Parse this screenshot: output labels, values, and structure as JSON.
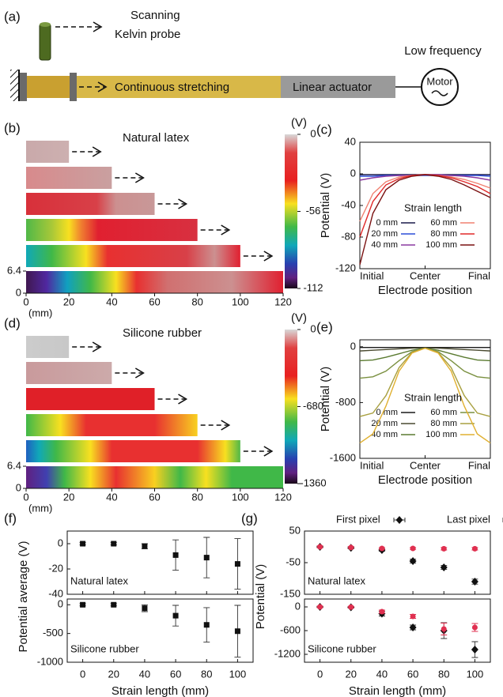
{
  "diagram": {
    "panel_label": "(a)",
    "probe_label": [
      "Scanning",
      "Kelvin probe"
    ],
    "stretch_label": "Continuous stretching",
    "actuator_label": "Linear actuator",
    "frequency_label": "Low frequency",
    "motor_label": "Motor"
  },
  "strip_panels": [
    {
      "panel_label": "(b)",
      "title": "Natural latex",
      "lengths": [
        20,
        40,
        60,
        80,
        100,
        120
      ],
      "xlim": [
        0,
        120
      ],
      "xticks": [
        0,
        20,
        40,
        60,
        80,
        100,
        120
      ],
      "xunit": "(mm)",
      "width_ticks": [
        6.4,
        0
      ],
      "colorbar": {
        "unit": "(V)",
        "lim": [
          -112,
          0
        ],
        "ticks": [
          0,
          -56,
          -112
        ]
      }
    },
    {
      "panel_label": "(d)",
      "title": "Silicone rubber",
      "lengths": [
        20,
        40,
        60,
        80,
        100,
        120
      ],
      "xlim": [
        0,
        120
      ],
      "xticks": [
        0,
        20,
        40,
        60,
        80,
        100,
        120
      ],
      "xunit": "(mm)",
      "width_ticks": [
        6.4,
        0
      ],
      "colorbar": {
        "unit": "(V)",
        "lim": [
          -1360,
          0
        ],
        "ticks": [
          0,
          -680,
          -1360
        ]
      }
    }
  ],
  "chart_data": [
    {
      "type": "line",
      "panel_label": "(c)",
      "ylabel": "Potential (V)",
      "xlabel": "Electrode position",
      "legend_title": "Strain length",
      "categories": [
        "Initial",
        null,
        null,
        null,
        null,
        "Center",
        null,
        null,
        null,
        null,
        "Final"
      ],
      "ylim": [
        -120,
        40
      ],
      "yticks": [
        40,
        0,
        -40,
        -80,
        -120
      ],
      "series": [
        {
          "name": "0 mm",
          "color": "#1a1a4a",
          "values": [
            -1,
            -1,
            -1,
            -1,
            -1,
            -1,
            -1,
            -1,
            -1,
            -1,
            -1
          ]
        },
        {
          "name": "20 mm",
          "color": "#2c4fd8",
          "values": [
            -3,
            -3,
            -2,
            -2,
            -2,
            -2,
            -2,
            -2,
            -2,
            -2,
            -3
          ]
        },
        {
          "name": "40 mm",
          "color": "#8a3aa0",
          "values": [
            -8,
            -5,
            -3,
            -2,
            -2,
            -1,
            -1,
            -2,
            -3,
            -5,
            -8
          ]
        },
        {
          "name": "60 mm",
          "color": "#f08070",
          "values": [
            -60,
            -25,
            -10,
            -4,
            -2,
            -1,
            -2,
            -4,
            -7,
            -12,
            -18
          ]
        },
        {
          "name": "80 mm",
          "color": "#e02828",
          "values": [
            -80,
            -35,
            -14,
            -6,
            -2,
            -1,
            -2,
            -5,
            -10,
            -16,
            -25
          ]
        },
        {
          "name": "100 mm",
          "color": "#7a1010",
          "values": [
            -115,
            -50,
            -20,
            -8,
            -3,
            -1,
            -3,
            -7,
            -14,
            -22,
            -30
          ]
        }
      ]
    },
    {
      "type": "line",
      "panel_label": "(e)",
      "ylabel": "Potential (V)",
      "xlabel": "Electrode position",
      "legend_title": "Strain length",
      "categories": [
        "Initial",
        null,
        null,
        null,
        null,
        "Center",
        null,
        null,
        null,
        null,
        "Final"
      ],
      "ylim": [
        -1600,
        100
      ],
      "yticks": [
        0,
        -800,
        -1600
      ],
      "series": [
        {
          "name": "0 mm",
          "color": "#1a1a1a",
          "values": [
            -10,
            -10,
            -10,
            -10,
            -10,
            -10,
            -10,
            -10,
            -10,
            -10,
            -10
          ]
        },
        {
          "name": "20 mm",
          "color": "#4a4a30",
          "values": [
            -60,
            -50,
            -40,
            -30,
            -20,
            -15,
            -20,
            -30,
            -40,
            -50,
            -60
          ]
        },
        {
          "name": "40 mm",
          "color": "#5a7a30",
          "values": [
            -200,
            -190,
            -150,
            -100,
            -50,
            -20,
            -50,
            -100,
            -150,
            -190,
            -200
          ]
        },
        {
          "name": "60 mm",
          "color": "#7a9040",
          "values": [
            -450,
            -430,
            -350,
            -200,
            -70,
            -20,
            -70,
            -200,
            -350,
            -430,
            -450
          ]
        },
        {
          "name": "80 mm",
          "color": "#a8a040",
          "values": [
            -1000,
            -950,
            -700,
            -300,
            -80,
            -20,
            -80,
            -300,
            -700,
            -950,
            -1000
          ]
        },
        {
          "name": "100 mm",
          "color": "#e0b030",
          "values": [
            -1380,
            -1250,
            -850,
            -350,
            -90,
            -20,
            -90,
            -350,
            -850,
            -1250,
            -1380
          ]
        }
      ]
    },
    {
      "type": "scatter",
      "panel_label": "(f)",
      "ylabel": "Potential average (V)",
      "annotation": "Natural latex",
      "marker": "square",
      "x": [
        0,
        20,
        40,
        60,
        80,
        100
      ],
      "xlim": [
        -10,
        110
      ],
      "ylim": [
        -40,
        10
      ],
      "yticks": [
        0,
        -20,
        -40
      ],
      "series": [
        {
          "color": "#111111",
          "values": [
            0,
            0,
            -2,
            -9,
            -11,
            -16
          ],
          "errors": [
            1,
            1,
            2,
            12,
            16,
            20
          ]
        }
      ]
    },
    {
      "type": "scatter",
      "annotation": "Silicone rubber",
      "xlabel": "Strain length (mm)",
      "marker": "square",
      "x": [
        0,
        20,
        40,
        60,
        80,
        100
      ],
      "xlim": [
        -10,
        110
      ],
      "xticks": [
        0,
        20,
        40,
        60,
        80,
        100
      ],
      "ylim": [
        -1000,
        100
      ],
      "yticks": [
        0,
        -500,
        -1000
      ],
      "series": [
        {
          "color": "#111111",
          "values": [
            0,
            0,
            -60,
            -190,
            -350,
            -460
          ],
          "errors": [
            20,
            20,
            60,
            180,
            300,
            450
          ]
        }
      ]
    },
    {
      "type": "scatter",
      "panel_label": "(g)",
      "ylabel": "Potential (V)",
      "annotation": "Natural latex",
      "x": [
        0,
        20,
        40,
        60,
        80,
        100
      ],
      "xlim": [
        -10,
        110
      ],
      "ylim": [
        -150,
        50
      ],
      "yticks": [
        50,
        -50,
        -150
      ],
      "series": [
        {
          "name": "First pixel",
          "color": "#111111",
          "marker": "diamond",
          "values": [
            0,
            -3,
            -10,
            -45,
            -65,
            -110
          ],
          "errors": [
            3,
            3,
            4,
            6,
            6,
            8
          ]
        },
        {
          "name": "Last pixel",
          "color": "#e03050",
          "marker": "circle",
          "values": [
            0,
            -2,
            -5,
            -5,
            -6,
            -6
          ],
          "errors": [
            3,
            3,
            3,
            3,
            4,
            4
          ]
        }
      ]
    },
    {
      "type": "scatter",
      "annotation": "Silicone rubber",
      "xlabel": "Strain length (mm)",
      "x": [
        0,
        20,
        40,
        60,
        80,
        100
      ],
      "xlim": [
        -10,
        110
      ],
      "xticks": [
        0,
        20,
        40,
        60,
        80,
        100
      ],
      "ylim": [
        -1400,
        200
      ],
      "yticks": [
        0,
        -600,
        -1200
      ],
      "series": [
        {
          "color": "#111111",
          "marker": "diamond",
          "values": [
            0,
            -10,
            -170,
            -520,
            -600,
            -1080
          ],
          "errors": [
            20,
            20,
            60,
            60,
            200,
            200
          ]
        },
        {
          "color": "#e03050",
          "marker": "circle",
          "values": [
            0,
            -5,
            -120,
            -240,
            -560,
            -520
          ],
          "errors": [
            20,
            20,
            40,
            50,
            150,
            100
          ]
        }
      ]
    }
  ]
}
